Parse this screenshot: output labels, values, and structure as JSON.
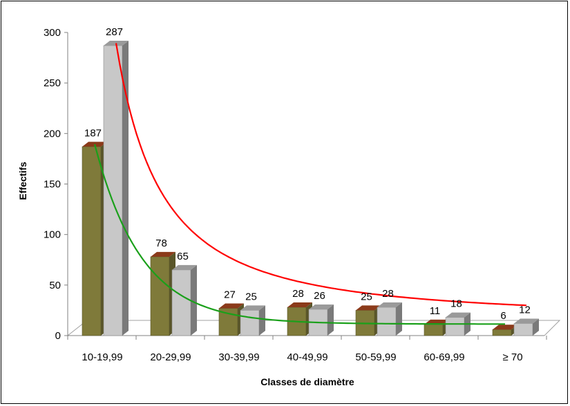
{
  "chart_data": {
    "type": "bar",
    "categories": [
      "10-19,99",
      "20-29,99",
      "30-39,99",
      "40-49,99",
      "50-59,99",
      "60-69,99",
      "≥ 70"
    ],
    "series": [
      {
        "values": [
          187,
          78,
          27,
          28,
          25,
          11,
          6
        ],
        "color": "#7f7a3a"
      },
      {
        "values": [
          287,
          65,
          25,
          26,
          28,
          18,
          12
        ],
        "color": "#c8c8c8"
      }
    ],
    "trendlines": [
      {
        "color": "#ff0000",
        "fits_series": 1
      },
      {
        "color": "#1aa01a",
        "fits_series": 0
      }
    ],
    "xlabel": "Classes de diamètre",
    "ylabel": "Effectifs",
    "ylim": [
      0,
      300
    ],
    "yticks": [
      0,
      50,
      100,
      150,
      200,
      250,
      300
    ],
    "grid": false,
    "legend": "none",
    "style": "3d-columns"
  }
}
